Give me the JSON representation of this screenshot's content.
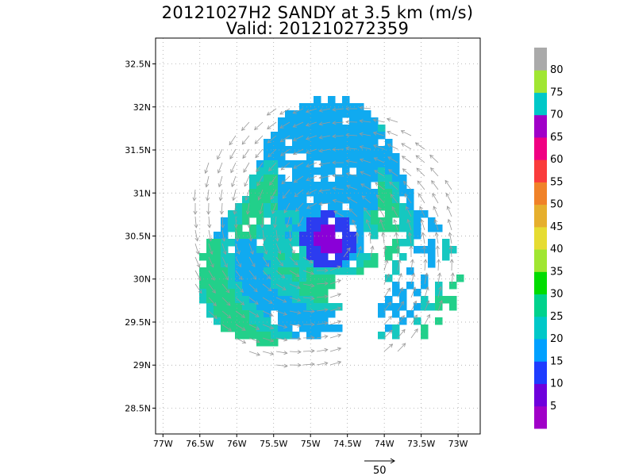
{
  "title_line1": "20121027H2 SANDY at 3.5 km (m/s)",
  "title_line2": "Valid: 201210272359",
  "reference_vector_label": "50",
  "colors": {
    "field_low": "#10aaf0",
    "field_mid": "#15c8c0",
    "field_high": "#22d08a",
    "core": "#8a00d8",
    "inner": "#2c3cf0",
    "arrow": "#999999"
  },
  "colorbar": {
    "labels": [
      "5",
      "10",
      "15",
      "20",
      "25",
      "30",
      "35",
      "40",
      "45",
      "50",
      "55",
      "60",
      "65",
      "70",
      "75",
      "80"
    ],
    "colors": [
      "#a000c8",
      "#6e00dc",
      "#1e3cff",
      "#00a0ff",
      "#00c8c8",
      "#00d28c",
      "#00dc00",
      "#a0e632",
      "#e6dc32",
      "#e6af2d",
      "#f08228",
      "#fa3c3c",
      "#f00082",
      "#a000c8",
      "#00c8c8",
      "#a0e632",
      "#aaaaaa"
    ]
  },
  "chart_data": {
    "type": "heatmap",
    "title": "20121027H2 SANDY at 3.5 km (m/s)",
    "subtitle": "Valid: 201210272359",
    "x_tick_labels": [
      "77W",
      "76.5W",
      "76W",
      "75.5W",
      "75W",
      "74.5W",
      "74W",
      "73.5W",
      "73W"
    ],
    "x_ticks": [
      -77,
      -76.5,
      -76,
      -75.5,
      -75,
      -74.5,
      -74,
      -73.5,
      -73
    ],
    "y_tick_labels": [
      "28.5N",
      "29N",
      "29.5N",
      "30N",
      "30.5N",
      "31N",
      "31.5N",
      "32N",
      "32.5N"
    ],
    "y_ticks": [
      28.5,
      29,
      29.5,
      30,
      30.5,
      31,
      31.5,
      32,
      32.5
    ],
    "xlim": [
      -77.1,
      -72.7
    ],
    "ylim": [
      28.2,
      32.8
    ],
    "grid": true,
    "center": {
      "lon": -74.8,
      "lat": 30.5
    },
    "colorbar_range": [
      0,
      85
    ],
    "wind_vectors": "cyclonic (counter-clockwise) circulation around center"
  }
}
